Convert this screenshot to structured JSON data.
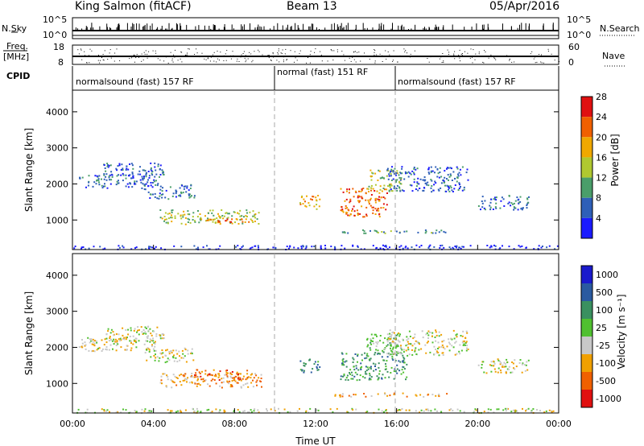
{
  "header": {
    "station": "King Salmon (fitACF)",
    "beam": "Beam 13",
    "date": "05/Apr/2016"
  },
  "side_labels": {
    "nsky": "N.Sky",
    "freq": "Freq.",
    "mhz": "[MHz]",
    "cpid": "CPID",
    "nsearch": "N.Search",
    "nave": "Nave"
  },
  "aux_ticks": {
    "noise_top": "10^5",
    "noise_bottom": "10^0",
    "freq_top": "18",
    "freq_bottom": "8",
    "nave_top": "60",
    "nave_bottom": "0"
  },
  "cpid_segments": [
    {
      "label": "normalsound (fast) 157 RF",
      "start_h": 0,
      "end_h": 10
    },
    {
      "label": "normal (fast) 151 RF",
      "start_h": 10,
      "end_h": 16
    },
    {
      "label": "normalsound (fast) 157 RF",
      "start_h": 16,
      "end_h": 24
    }
  ],
  "chart_data": [
    {
      "type": "heatmap",
      "ylabel": "Slant Range [km]",
      "xlabel": "Time UT",
      "xlim": [
        0,
        24
      ],
      "ylim": [
        180,
        4600
      ],
      "x_ticks": [
        "00:00",
        "04:00",
        "08:00",
        "12:00",
        "16:00",
        "20:00",
        "00:00"
      ],
      "y_ticks": [
        1000,
        2000,
        3000,
        4000
      ],
      "colorbar": {
        "label": "Power [dB]",
        "ticks": [
          "4",
          "8",
          "12",
          "16",
          "20",
          "24",
          "28"
        ],
        "colors": [
          "#1a1aff",
          "#2e5fb8",
          "#4a9e6a",
          "#b0c830",
          "#f0a800",
          "#f06000",
          "#e01010"
        ]
      },
      "regions": [
        {
          "t0": 0.3,
          "t1": 4.2,
          "r0": 1900,
          "r1": 2300,
          "level": 1
        },
        {
          "t0": 1.5,
          "t1": 4.5,
          "r0": 2200,
          "r1": 2600,
          "level": 1
        },
        {
          "t0": 3.5,
          "t1": 6.0,
          "r0": 1600,
          "r1": 2000,
          "level": 1
        },
        {
          "t0": 4.3,
          "t1": 9.3,
          "r0": 900,
          "r1": 1300,
          "level": 3
        },
        {
          "t0": 6.5,
          "t1": 8.8,
          "r0": 950,
          "r1": 1100,
          "level": 5
        },
        {
          "t0": 11.2,
          "t1": 12.2,
          "r0": 1300,
          "r1": 1700,
          "level": 4
        },
        {
          "t0": 13.2,
          "t1": 15.5,
          "r0": 1100,
          "r1": 1900,
          "level": 5
        },
        {
          "t0": 14.5,
          "t1": 16.2,
          "r0": 1800,
          "r1": 2400,
          "level": 3
        },
        {
          "t0": 15.5,
          "t1": 19.5,
          "r0": 1800,
          "r1": 2500,
          "level": 1
        },
        {
          "t0": 20.0,
          "t1": 22.5,
          "r0": 1300,
          "r1": 1700,
          "level": 1
        },
        {
          "t0": 12.8,
          "t1": 18.5,
          "r0": 650,
          "r1": 750,
          "level": 2
        },
        {
          "t0": 0.0,
          "t1": 24.0,
          "r0": 200,
          "r1": 320,
          "level": 0
        }
      ]
    },
    {
      "type": "heatmap",
      "ylabel": "Slant Range [km]",
      "xlabel": "Time UT",
      "xlim": [
        0,
        24
      ],
      "ylim": [
        180,
        4600
      ],
      "x_ticks": [
        "00:00",
        "04:00",
        "08:00",
        "12:00",
        "16:00",
        "20:00",
        "00:00"
      ],
      "y_ticks": [
        1000,
        2000,
        3000,
        4000
      ],
      "colorbar": {
        "label": "Velocity [m s⁻¹]",
        "ticks": [
          "1000",
          "500",
          "100",
          "25",
          "-25",
          "-100",
          "-500",
          "-1000"
        ],
        "colors": [
          "#1a1acc",
          "#2a5aa0",
          "#3a9060",
          "#50c030",
          "#c8c8c8",
          "#f0a000",
          "#f06000",
          "#e01010"
        ]
      },
      "regions": [
        {
          "t0": 0.3,
          "t1": 4.2,
          "r0": 1900,
          "r1": 2300,
          "level": 4
        },
        {
          "t0": 1.5,
          "t1": 4.5,
          "r0": 2200,
          "r1": 2600,
          "level": 4
        },
        {
          "t0": 3.5,
          "t1": 6.0,
          "r0": 1600,
          "r1": 2000,
          "level": 4
        },
        {
          "t0": 4.3,
          "t1": 9.3,
          "r0": 900,
          "r1": 1300,
          "level": 5
        },
        {
          "t0": 6.0,
          "t1": 9.0,
          "r0": 1100,
          "r1": 1400,
          "level": 6
        },
        {
          "t0": 11.2,
          "t1": 12.2,
          "r0": 1300,
          "r1": 1700,
          "level": 2
        },
        {
          "t0": 13.2,
          "t1": 16.5,
          "r0": 1100,
          "r1": 1900,
          "level": 2
        },
        {
          "t0": 14.5,
          "t1": 16.2,
          "r0": 1800,
          "r1": 2400,
          "level": 3
        },
        {
          "t0": 15.5,
          "t1": 19.5,
          "r0": 1800,
          "r1": 2500,
          "level": 4
        },
        {
          "t0": 20.0,
          "t1": 22.5,
          "r0": 1300,
          "r1": 1700,
          "level": 4
        },
        {
          "t0": 12.8,
          "t1": 18.5,
          "r0": 650,
          "r1": 750,
          "level": 5
        },
        {
          "t0": 0.0,
          "t1": 24.0,
          "r0": 200,
          "r1": 320,
          "level": 4
        }
      ]
    }
  ]
}
